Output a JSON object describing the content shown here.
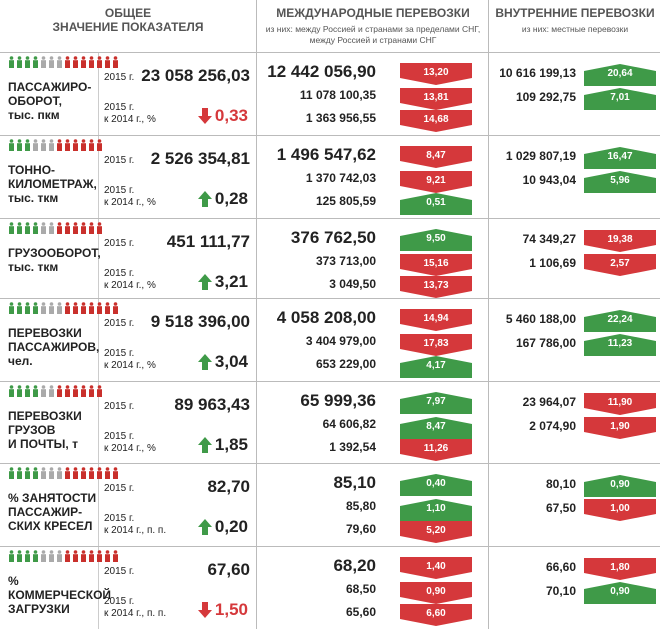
{
  "headers": {
    "total": "ОБЩЕЕ\nЗНАЧЕНИЕ ПОКАЗАТЕЛЯ",
    "intl": "МЕЖДУНАРОДНЫЕ ПЕРЕВОЗКИ",
    "intl_sub": "из них: между Россией и странами за пределами СНГ,\nмежду Россией и странами СНГ",
    "dom": "ВНУТРЕННИЕ ПЕРЕВОЗКИ",
    "dom_sub": "из них: местные перевозки"
  },
  "year_label": "2015 г.",
  "colors": {
    "up": "#3f9a48",
    "down": "#d5383b",
    "icon_red": "#c9302c",
    "icon_green": "#3f9a48",
    "icon_gray": "#aaaaaa"
  },
  "rows": [
    {
      "label": "ПАССАЖИРО-\nОБОРОТ,\nтыс. пкм",
      "total": "23 058 256,03",
      "change_label": "2015 г.\nк 2014 г., %",
      "change": "0,33",
      "dir": "down",
      "icons": [
        "green",
        "green",
        "green",
        "green",
        "gray",
        "gray",
        "gray",
        "red",
        "red",
        "red",
        "red",
        "red",
        "red",
        "red"
      ],
      "intl": [
        "12 442 056,90",
        "11 078 100,35",
        "1 363 956,55"
      ],
      "intl_badges": [
        {
          "v": "13,20",
          "d": "down"
        },
        {
          "v": "13,81",
          "d": "down"
        },
        {
          "v": "14,68",
          "d": "down"
        }
      ],
      "dom": [
        "10 616 199,13",
        "109 292,75"
      ],
      "dom_badges": [
        {
          "v": "20,64",
          "d": "up"
        },
        {
          "v": "7,01",
          "d": "up"
        }
      ]
    },
    {
      "label": "ТОННО-\nКИЛОМЕТРАЖ,\nтыс. ткм",
      "total": "2 526 354,81",
      "change_label": "2015 г.\nк 2014 г., %",
      "change": "0,28",
      "dir": "up",
      "icons": [
        "green",
        "green",
        "green",
        "gray",
        "gray",
        "gray",
        "red",
        "red",
        "red",
        "red",
        "red",
        "red"
      ],
      "intl": [
        "1 496 547,62",
        "1 370 742,03",
        "125 805,59"
      ],
      "intl_badges": [
        {
          "v": "8,47",
          "d": "down"
        },
        {
          "v": "9,21",
          "d": "down"
        },
        {
          "v": "0,51",
          "d": "up"
        }
      ],
      "dom": [
        "1 029 807,19",
        "10 943,04"
      ],
      "dom_badges": [
        {
          "v": "16,47",
          "d": "up"
        },
        {
          "v": "5,96",
          "d": "up"
        }
      ]
    },
    {
      "label": "ГРУЗООБОРОТ,\nтыс. ткм",
      "total": "451 111,77",
      "change_label": "2015 г.\nк 2014 г., %",
      "change": "3,21",
      "dir": "up",
      "icons": [
        "green",
        "green",
        "green",
        "green",
        "gray",
        "gray",
        "red",
        "red",
        "red",
        "red",
        "red",
        "red"
      ],
      "intl": [
        "376 762,50",
        "373 713,00",
        "3 049,50"
      ],
      "intl_badges": [
        {
          "v": "9,50",
          "d": "up"
        },
        {
          "v": "15,16",
          "d": "down"
        },
        {
          "v": "13,73",
          "d": "down"
        }
      ],
      "dom": [
        "74 349,27",
        "1 106,69"
      ],
      "dom_badges": [
        {
          "v": "19,38",
          "d": "down"
        },
        {
          "v": "2,57",
          "d": "down"
        }
      ]
    },
    {
      "label": "ПЕРЕВОЗКИ\nПАССАЖИРОВ,\nчел.",
      "total": "9 518 396,00",
      "change_label": "2015 г.\nк 2014 г., %",
      "change": "3,04",
      "dir": "up",
      "icons": [
        "green",
        "green",
        "green",
        "green",
        "gray",
        "gray",
        "gray",
        "red",
        "red",
        "red",
        "red",
        "red",
        "red",
        "red"
      ],
      "intl": [
        "4 058 208,00",
        "3 404 979,00",
        "653 229,00"
      ],
      "intl_badges": [
        {
          "v": "14,94",
          "d": "down"
        },
        {
          "v": "17,83",
          "d": "down"
        },
        {
          "v": "4,17",
          "d": "up"
        }
      ],
      "dom": [
        "5 460 188,00",
        "167 786,00"
      ],
      "dom_badges": [
        {
          "v": "22,24",
          "d": "up"
        },
        {
          "v": "11,23",
          "d": "up"
        }
      ]
    },
    {
      "label": "ПЕРЕВОЗКИ\nГРУЗОВ\nИ ПОЧТЫ, т",
      "total": "89 963,43",
      "change_label": "2015 г.\nк 2014 г., %",
      "change": "1,85",
      "dir": "up",
      "icons": [
        "green",
        "green",
        "green",
        "green",
        "gray",
        "gray",
        "red",
        "red",
        "red",
        "red",
        "red",
        "red"
      ],
      "intl": [
        "65 999,36",
        "64 606,82",
        "1 392,54"
      ],
      "intl_badges": [
        {
          "v": "7,97",
          "d": "up"
        },
        {
          "v": "8,47",
          "d": "up"
        },
        {
          "v": "11,26",
          "d": "down"
        }
      ],
      "dom": [
        "23 964,07",
        "2 074,90"
      ],
      "dom_badges": [
        {
          "v": "11,90",
          "d": "down"
        },
        {
          "v": "1,90",
          "d": "down"
        }
      ]
    },
    {
      "label": "% ЗАНЯТОСТИ\nПАССАЖИР-\nСКИХ КРЕСЕЛ",
      "total": "82,70",
      "change_label": "2015 г.\nк 2014 г., п. п.",
      "change": "0,20",
      "dir": "up",
      "icons": [
        "green",
        "green",
        "green",
        "green",
        "gray",
        "gray",
        "gray",
        "red",
        "red",
        "red",
        "red",
        "red",
        "red",
        "red"
      ],
      "intl": [
        "85,10",
        "85,80",
        "79,60"
      ],
      "intl_badges": [
        {
          "v": "0,40",
          "d": "up"
        },
        {
          "v": "1,10",
          "d": "up"
        },
        {
          "v": "5,20",
          "d": "down"
        }
      ],
      "dom": [
        "80,10",
        "67,50"
      ],
      "dom_badges": [
        {
          "v": "0,90",
          "d": "up"
        },
        {
          "v": "1,00",
          "d": "down"
        }
      ]
    },
    {
      "label": "%\nКОММЕРЧЕСКОЙ\nЗАГРУЗКИ",
      "total": "67,60",
      "change_label": "2015 г.\nк 2014 г., п. п.",
      "change": "1,50",
      "dir": "down",
      "icons": [
        "green",
        "green",
        "green",
        "green",
        "gray",
        "gray",
        "gray",
        "red",
        "red",
        "red",
        "red",
        "red",
        "red",
        "red"
      ],
      "intl": [
        "68,20",
        "68,50",
        "65,60"
      ],
      "intl_badges": [
        {
          "v": "1,40",
          "d": "down"
        },
        {
          "v": "0,90",
          "d": "down"
        },
        {
          "v": "6,60",
          "d": "down"
        }
      ],
      "dom": [
        "66,60",
        "70,10"
      ],
      "dom_badges": [
        {
          "v": "1,80",
          "d": "down"
        },
        {
          "v": "0,90",
          "d": "up"
        }
      ]
    }
  ]
}
